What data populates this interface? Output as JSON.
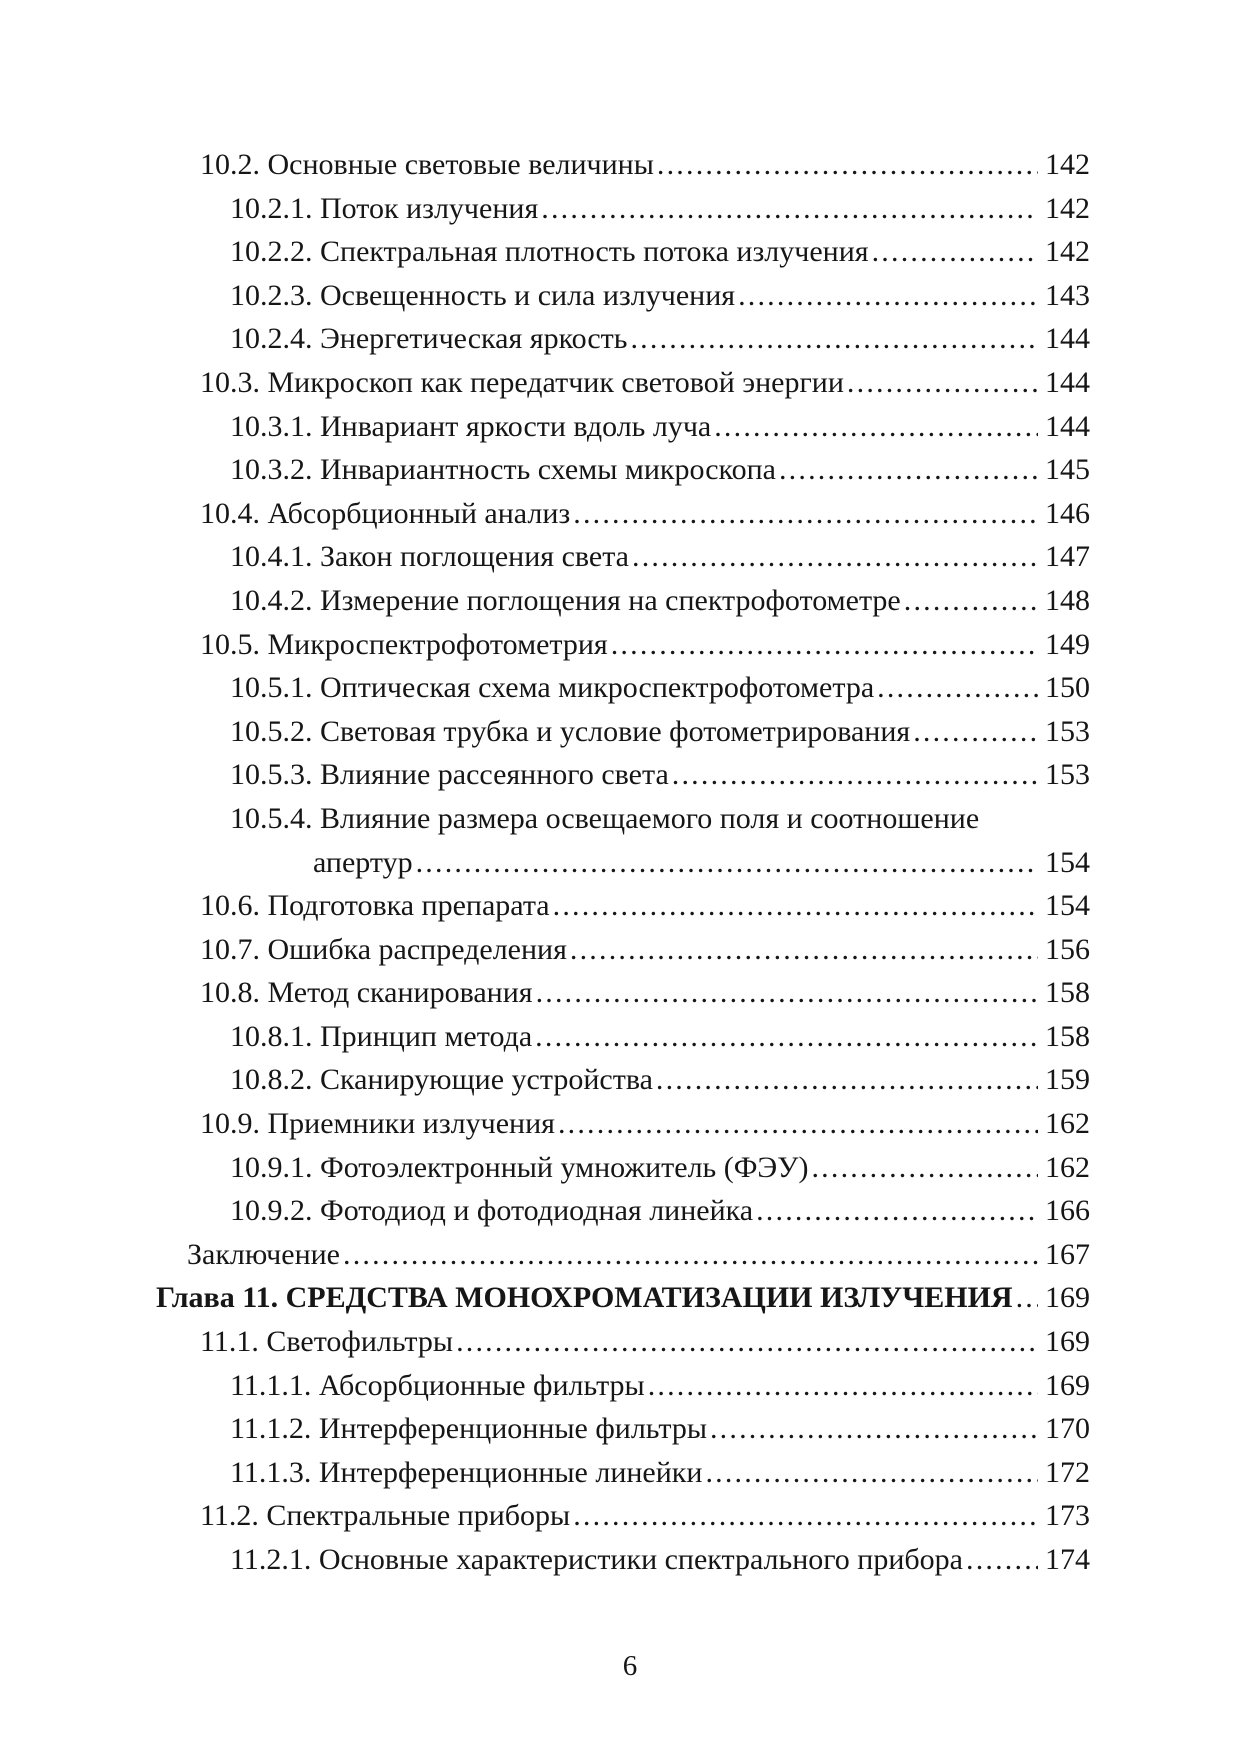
{
  "toc": {
    "rows": [
      {
        "level": "section",
        "label": "10.2. Основные световые величины",
        "page": "142"
      },
      {
        "level": "subsection",
        "label": "10.2.1. Поток излучения",
        "page": "142"
      },
      {
        "level": "subsection",
        "label": "10.2.2. Спектральная плотность потока излучения",
        "page": "142"
      },
      {
        "level": "subsection",
        "label": "10.2.3. Освещенность и сила излучения",
        "page": "143"
      },
      {
        "level": "subsection",
        "label": "10.2.4. Энергетическая яркость",
        "page": "144"
      },
      {
        "level": "section",
        "label": "10.3. Микроскоп как передатчик световой энергии",
        "page": "144"
      },
      {
        "level": "subsection",
        "label": "10.3.1. Инвариант яркости вдоль луча",
        "page": "144"
      },
      {
        "level": "subsection",
        "label": "10.3.2. Инвариантность схемы микроскопа",
        "page": "145"
      },
      {
        "level": "section",
        "label": "10.4. Абсорбционный анализ",
        "page": "146"
      },
      {
        "level": "subsection",
        "label": "10.4.1. Закон поглощения света",
        "page": "147"
      },
      {
        "level": "subsection",
        "label": "10.4.2. Измерение поглощения на спектрофотометре",
        "page": "148"
      },
      {
        "level": "section",
        "label": "10.5. Микроспектрофотометрия",
        "page": "149"
      },
      {
        "level": "subsection",
        "label": "10.5.1. Оптическая схема микроспектрофотометра",
        "page": "150"
      },
      {
        "level": "subsection",
        "label": "10.5.2. Световая трубка и условие фотометрирования",
        "page": "153"
      },
      {
        "level": "subsection",
        "label": "10.5.3. Влияние рассеянного света",
        "page": "153"
      },
      {
        "level": "subsection",
        "label": "10.5.4. Влияние размера освещаемого поля и соотношение",
        "page": null
      },
      {
        "level": "continuation",
        "label": "апертур",
        "page": "154"
      },
      {
        "level": "section",
        "label": "10.6. Подготовка препарата",
        "page": "154"
      },
      {
        "level": "section",
        "label": "10.7. Ошибка распределения",
        "page": "156"
      },
      {
        "level": "section",
        "label": "10.8. Метод сканирования",
        "page": "158"
      },
      {
        "level": "subsection",
        "label": "10.8.1. Принцип метода",
        "page": "158"
      },
      {
        "level": "subsection",
        "label": "10.8.2. Сканирующие устройства",
        "page": "159"
      },
      {
        "level": "section",
        "label": "10.9. Приемники излучения",
        "page": "162"
      },
      {
        "level": "subsection",
        "label": "10.9.1. Фотоэлектронный умножитель (ФЭУ)",
        "page": "162"
      },
      {
        "level": "subsection",
        "label": "10.9.2. Фотодиод и фотодиодная линейка",
        "page": "166"
      },
      {
        "level": "plain",
        "label": "Заключение",
        "page": "167"
      },
      {
        "level": "chapter",
        "label": "Глава 11. СРЕДСТВА МОНОХРОМАТИЗАЦИИ ИЗЛУЧЕНИЯ",
        "page": "169"
      },
      {
        "level": "section",
        "label": "11.1. Светофильтры",
        "page": "169"
      },
      {
        "level": "subsection",
        "label": "11.1.1. Абсорбционные фильтры",
        "page": "169"
      },
      {
        "level": "subsection",
        "label": "11.1.2. Интерференционные фильтры",
        "page": "170"
      },
      {
        "level": "subsection",
        "label": "11.1.3. Интерференционные линейки",
        "page": "172"
      },
      {
        "level": "section",
        "label": "11.2. Спектральные приборы",
        "page": "173"
      },
      {
        "level": "subsection",
        "label": "11.2.1. Основные характеристики спектрального прибора",
        "page": "174"
      }
    ]
  },
  "footer": {
    "page_number": "6"
  },
  "colors": {
    "text": "#161616",
    "background": "#ffffff"
  }
}
